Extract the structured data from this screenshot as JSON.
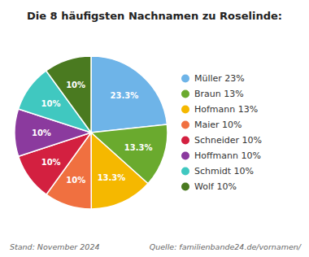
{
  "chart_data": {
    "type": "pie",
    "title": "Die 8 häufigsten Nachnamen zu Roselinde:",
    "categories": [
      "Müller 23%",
      "Braun 13%",
      "Hofmann 13%",
      "Maier 10%",
      "Schneider 10%",
      "Hoffmann 10%",
      "Schmidt 10%",
      "Wolf 10%"
    ],
    "values": [
      23.3,
      13.3,
      13.3,
      10,
      10,
      10,
      10,
      10
    ],
    "value_labels": [
      "23.3%",
      "13.3%",
      "13.3%",
      "10%",
      "10%",
      "10%",
      "10%",
      "10%"
    ],
    "colors": [
      "#6eb4e8",
      "#6aaa2e",
      "#f5b800",
      "#f07040",
      "#d32040",
      "#8b3a9e",
      "#40c8c0",
      "#4a7a20"
    ],
    "data_labels": true,
    "legend": "right",
    "annotations": [
      "Stand: November 2024",
      "Quelle: familienbande24.de/vornamen/"
    ]
  }
}
